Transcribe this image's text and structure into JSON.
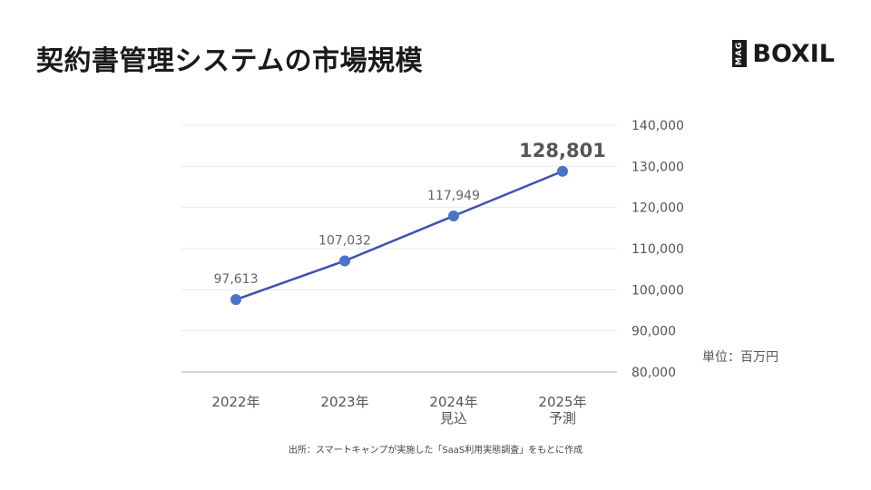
{
  "title": "契約書管理システムの市場規模",
  "logo": {
    "mag": "MAG",
    "brand": "BOXIL"
  },
  "unit": "単位：百万円",
  "source": "出所：スマートキャンプが実施した「SaaS利用実態調査」をもとに作成",
  "colors": {
    "line": "#3f4fb0",
    "point": "#4a74c9",
    "grid": "#e8e8e8",
    "axis": "#bdbdbd",
    "tick": "#555555",
    "label": "#666666"
  },
  "chart_data": {
    "type": "line",
    "title": "契約書管理システムの市場規模",
    "categories": [
      [
        "2022年"
      ],
      [
        "2023年"
      ],
      [
        "2024年",
        "見込"
      ],
      [
        "2025年",
        "予測"
      ]
    ],
    "values": [
      97613,
      107032,
      117949,
      128801
    ],
    "value_labels": [
      "97,613",
      "107,032",
      "117,949",
      "128,801"
    ],
    "highlight_index": 3,
    "ylim": [
      80000,
      140000
    ],
    "yticks": [
      80000,
      90000,
      100000,
      110000,
      120000,
      130000,
      140000
    ],
    "ytick_labels": [
      "80,000",
      "90,000",
      "100,000",
      "110,000",
      "120,000",
      "130,000",
      "140,000"
    ],
    "y_axis_side": "right",
    "grid": true,
    "ylabel": "単位：百万円"
  }
}
